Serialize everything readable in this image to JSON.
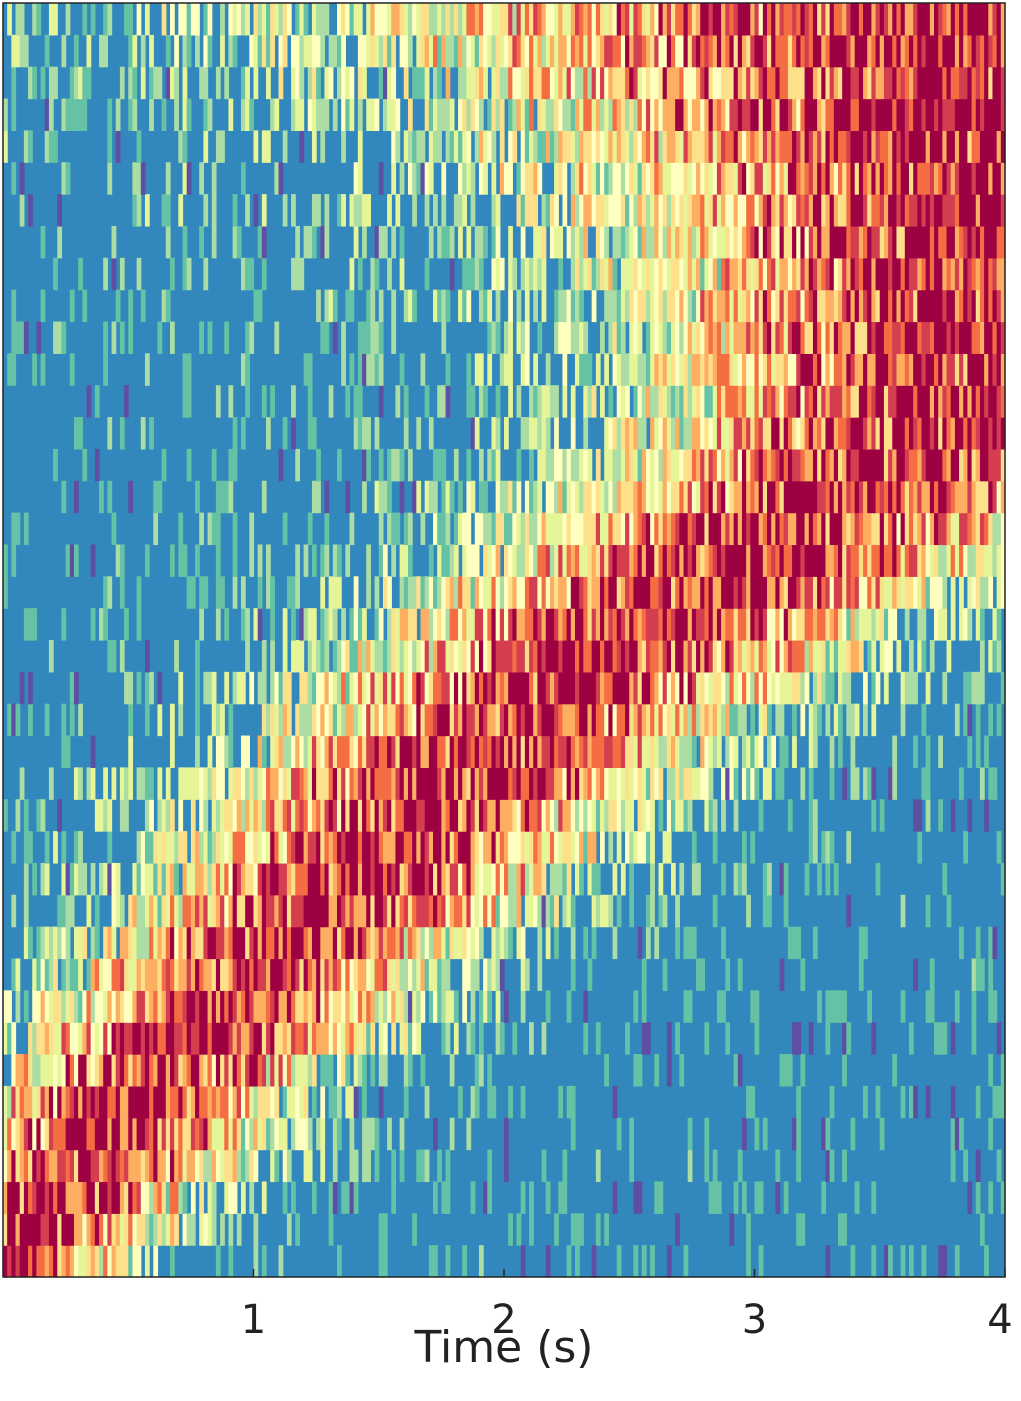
{
  "chart_data": {
    "type": "heatmap",
    "title": "",
    "xlabel": "Time (s)",
    "ylabel": "",
    "xlim": [
      0,
      4
    ],
    "x_ticks": [
      {
        "value": 1,
        "label": "1"
      },
      {
        "value": 2,
        "label": "2"
      },
      {
        "value": 3,
        "label": "3"
      },
      {
        "value": 4,
        "label": "4"
      }
    ],
    "rows": 40,
    "time_bins": 240,
    "colormap": [
      "#5e4fa2",
      "#3288bd",
      "#66c2a5",
      "#abdda4",
      "#e6f598",
      "#ffffbf",
      "#fee08b",
      "#fdae61",
      "#f46d43",
      "#d53e4f",
      "#9e0142"
    ],
    "background_color": "#3288bd",
    "grid": false,
    "legend": "none",
    "peak_times_bottom_to_top": [
      0.02,
      0.12,
      0.22,
      0.32,
      0.42,
      0.5,
      0.62,
      0.78,
      0.9,
      1.0,
      1.12,
      1.3,
      1.45,
      1.55,
      1.65,
      1.78,
      1.9,
      2.05,
      2.2,
      2.4,
      2.55,
      2.75,
      2.95,
      3.15,
      3.4,
      3.6,
      3.75,
      3.85,
      3.9,
      3.95,
      4.0,
      4.0,
      4.0,
      4.0,
      4.0,
      4.0,
      4.0,
      4.0,
      4.0,
      4.0
    ],
    "peak_widths_bottom_to_top": [
      0.5,
      0.6,
      0.6,
      0.7,
      0.7,
      0.7,
      0.7,
      0.8,
      0.8,
      0.8,
      0.8,
      0.9,
      0.9,
      0.9,
      0.9,
      1.0,
      1.0,
      1.0,
      1.1,
      1.1,
      1.1,
      1.2,
      1.2,
      1.2,
      1.3,
      1.3,
      1.4,
      1.4,
      1.5,
      1.5,
      1.6,
      1.6,
      1.7,
      1.8,
      1.9,
      2.0,
      2.2,
      2.4,
      2.6,
      2.8
    ]
  }
}
